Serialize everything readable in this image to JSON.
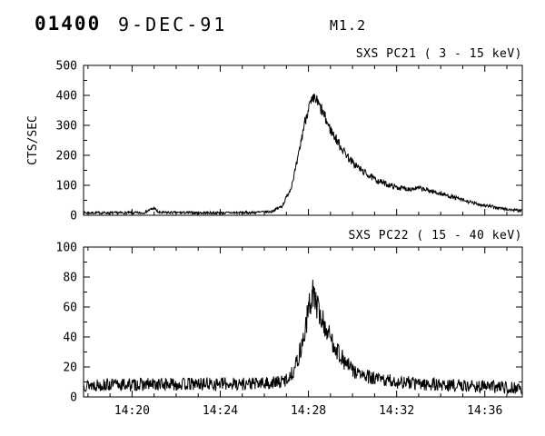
{
  "header": {
    "event_id": "01400",
    "date": "9-DEC-91",
    "flare_class": "M1.2"
  },
  "chart_data": [
    {
      "type": "line",
      "title": "SXS PC21 (  3 - 15 keV)",
      "ylabel": "CTS/SEC",
      "xlabel": "",
      "x_unit": "minutes after 14:00 UT",
      "xlim": [
        17.8,
        37.7
      ],
      "ylim": [
        0,
        500
      ],
      "xticks": [
        20,
        24,
        28,
        32,
        36
      ],
      "xtick_labels": [
        "",
        "",
        "",
        "",
        ""
      ],
      "yticks": [
        0,
        100,
        200,
        300,
        400,
        500
      ],
      "ytick_labels": [
        "0",
        "100",
        "200",
        "300",
        "400",
        "500"
      ],
      "x_minor_step": 1,
      "y_minor_step": 50,
      "grid": false,
      "legend": false,
      "line_color": "#000000",
      "noise": {
        "base": 4,
        "rel": 0.05,
        "seed": 7
      },
      "keypoints": [
        [
          17.8,
          8
        ],
        [
          20.5,
          8
        ],
        [
          21.0,
          24
        ],
        [
          21.2,
          9
        ],
        [
          24.0,
          8
        ],
        [
          25.5,
          9
        ],
        [
          26.3,
          12
        ],
        [
          26.8,
          30
        ],
        [
          27.2,
          90
        ],
        [
          27.5,
          180
        ],
        [
          27.8,
          300
        ],
        [
          28.0,
          360
        ],
        [
          28.3,
          390
        ],
        [
          28.6,
          350
        ],
        [
          29.0,
          285
        ],
        [
          29.5,
          225
        ],
        [
          30.0,
          175
        ],
        [
          30.5,
          145
        ],
        [
          31.0,
          120
        ],
        [
          31.5,
          105
        ],
        [
          32.0,
          93
        ],
        [
          32.5,
          88
        ],
        [
          33.0,
          90
        ],
        [
          33.5,
          82
        ],
        [
          34.0,
          72
        ],
        [
          34.5,
          62
        ],
        [
          35.0,
          50
        ],
        [
          35.5,
          40
        ],
        [
          36.0,
          33
        ],
        [
          36.5,
          26
        ],
        [
          37.0,
          20
        ],
        [
          37.7,
          14
        ]
      ]
    },
    {
      "type": "line",
      "title": "SXS PC22 ( 15 - 40 keV)",
      "ylabel": "",
      "xlabel": "",
      "x_unit": "minutes after 14:00 UT",
      "xlim": [
        17.8,
        37.7
      ],
      "ylim": [
        0,
        100
      ],
      "xticks": [
        20,
        24,
        28,
        32,
        36
      ],
      "xtick_labels": [
        "14:20",
        "14:24",
        "14:28",
        "14:32",
        "14:36"
      ],
      "yticks": [
        0,
        20,
        40,
        60,
        80,
        100
      ],
      "ytick_labels": [
        "0",
        "20",
        "40",
        "60",
        "80",
        "100"
      ],
      "x_minor_step": 1,
      "y_minor_step": 10,
      "grid": false,
      "legend": false,
      "line_color": "#000000",
      "noise": {
        "base": 3.5,
        "rel": 0.1,
        "seed": 13
      },
      "keypoints": [
        [
          17.8,
          8
        ],
        [
          26.0,
          9
        ],
        [
          26.8,
          10
        ],
        [
          27.2,
          14
        ],
        [
          27.5,
          24
        ],
        [
          27.8,
          40
        ],
        [
          28.0,
          58
        ],
        [
          28.2,
          70
        ],
        [
          28.4,
          60
        ],
        [
          28.6,
          52
        ],
        [
          28.9,
          42
        ],
        [
          29.2,
          34
        ],
        [
          29.6,
          24
        ],
        [
          30.0,
          18
        ],
        [
          30.5,
          14
        ],
        [
          31.0,
          12
        ],
        [
          32.0,
          10
        ],
        [
          33.0,
          9
        ],
        [
          34.0,
          8
        ],
        [
          36.0,
          7
        ],
        [
          37.7,
          6
        ]
      ]
    }
  ]
}
